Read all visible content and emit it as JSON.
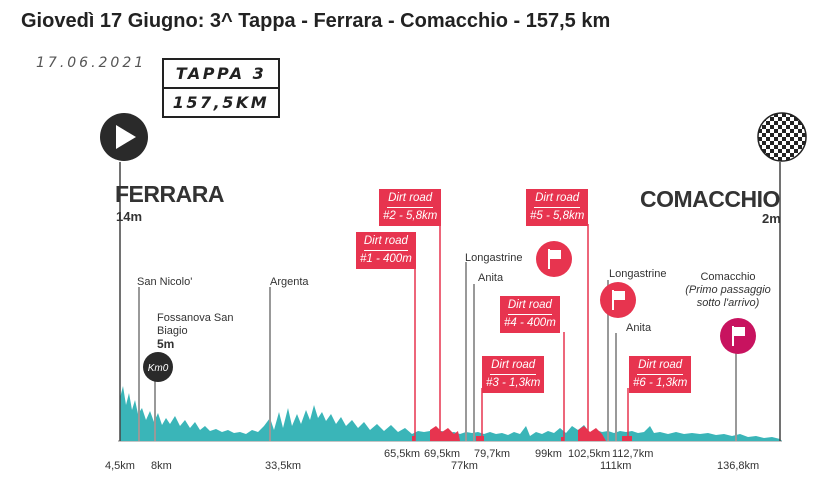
{
  "title": "Giovedì 17 Giugno: 3^ Tappa - Ferrara - Comacchio - 157,5 km",
  "date": "17.06.2021",
  "stage": {
    "name": "TAPPA 3",
    "distance": "157,5KM"
  },
  "start": {
    "city": "FERRARA",
    "altitude": "14m",
    "icon": "play-icon"
  },
  "finish": {
    "city": "COMACCHIO",
    "altitude": "2m",
    "icon": "checkered-flag-icon"
  },
  "waypoints": [
    {
      "name": "San Nicolo'",
      "km": "8km"
    },
    {
      "name": "Fossanova San Biagio",
      "name_line1": "Fossanova San",
      "name_line2": "Biagio",
      "altitude": "5m",
      "badge": "Km0",
      "km": "4,5km"
    },
    {
      "name": "Argenta",
      "km": "33,5km"
    },
    {
      "name": "Longastrine",
      "km": "77km"
    },
    {
      "name": "Anita",
      "km": ""
    },
    {
      "name": "Longastrine",
      "km": "111km"
    },
    {
      "name": "Anita",
      "km": ""
    },
    {
      "name": "Comacchio (Primo passaggio sotto l'arrivo)",
      "name_line1": "Comacchio",
      "name_line2": "(Primo passaggio",
      "name_line3": "sotto l'arrivo)",
      "km": "136,8km"
    }
  ],
  "dirt_roads": [
    {
      "label": "Dirt road",
      "detail": "#1 - 400m",
      "km": "65,5km"
    },
    {
      "label": "Dirt road",
      "detail": "#2 - 5,8km",
      "km": "69,5km"
    },
    {
      "label": "Dirt road",
      "detail": "#3 - 1,3km",
      "km": "79,7km"
    },
    {
      "label": "Dirt road",
      "detail": "#4 - 400m",
      "km": "99km"
    },
    {
      "label": "Dirt road",
      "detail": "#5 - 5,8km",
      "km": "102,5km"
    },
    {
      "label": "Dirt road",
      "detail": "#6 - 1,3km",
      "km": "112,7km"
    }
  ],
  "colors": {
    "elevation_fill": "#3ab5b8",
    "dirt_red": "#e7344f",
    "finish_magenta": "#c8135f",
    "start_dark": "#2a2a2a"
  }
}
